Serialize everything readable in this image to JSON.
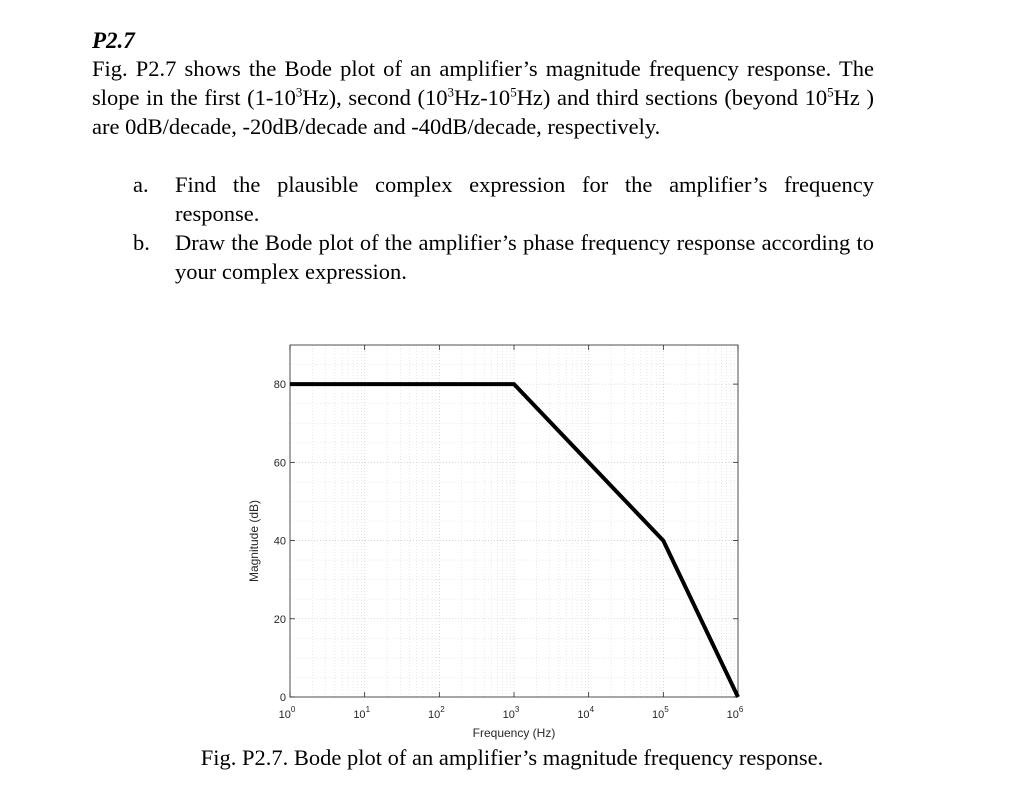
{
  "problem": {
    "number": "P2.7",
    "statement_parts": [
      "Fig. P2.7 shows the Bode plot of an amplifier’s magnitude frequency response. The slope in the first (1-10",
      "3",
      "Hz), second (10",
      "3",
      "Hz-10",
      "5",
      "Hz) and third sections (beyond 10",
      "5",
      "Hz ) are 0dB/decade, -20dB/decade and -40dB/decade, respectively."
    ],
    "parts": [
      {
        "marker": "a.",
        "text": "Find the plausible complex expression for the amplifier’s frequency response."
      },
      {
        "marker": "b.",
        "text": "Draw the Bode plot of the amplifier’s phase frequency response according to your complex expression."
      }
    ]
  },
  "figure": {
    "caption": "Fig. P2.7. Bode plot of an amplifier’s magnitude frequency response."
  },
  "chart_data": {
    "type": "line",
    "title": "",
    "xlabel": "Frequency (Hz)",
    "ylabel": "Magnitude (dB)",
    "x_scale": "log",
    "xlim": [
      1,
      1000000
    ],
    "ylim": [
      0,
      90
    ],
    "x_ticks": [
      {
        "value": 1,
        "base": "10",
        "exp": "0"
      },
      {
        "value": 10,
        "base": "10",
        "exp": "1"
      },
      {
        "value": 100,
        "base": "10",
        "exp": "2"
      },
      {
        "value": 1000,
        "base": "10",
        "exp": "3"
      },
      {
        "value": 10000,
        "base": "10",
        "exp": "4"
      },
      {
        "value": 100000,
        "base": "10",
        "exp": "5"
      },
      {
        "value": 1000000,
        "base": "10",
        "exp": "6"
      }
    ],
    "y_ticks": [
      0,
      20,
      40,
      60,
      80
    ],
    "grid": true,
    "minor_grid": true,
    "series": [
      {
        "color": "#000000",
        "x": [
          1,
          1000,
          100000,
          1000000
        ],
        "y": [
          80,
          80,
          40,
          0
        ]
      }
    ]
  }
}
